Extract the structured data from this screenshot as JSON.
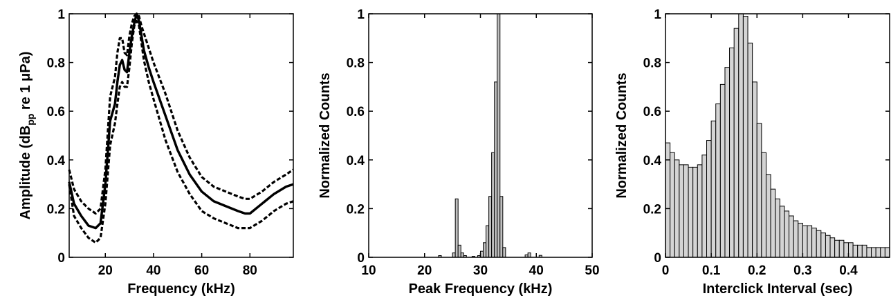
{
  "chart_data": [
    {
      "type": "line",
      "xlabel": "Frequency (kHz)",
      "ylabel": {
        "pre": "Amplitude (dB",
        "sub": "pp",
        "post": " re 1 μPa)"
      },
      "xlim": [
        5,
        98
      ],
      "ylim": [
        0,
        1
      ],
      "xticks": [
        20,
        40,
        60,
        80
      ],
      "yticks": [
        0,
        0.2,
        0.4,
        0.6,
        0.8,
        1
      ],
      "ytick_labels": [
        "0",
        "0.2",
        "0.4",
        "0.6",
        "0.8",
        "1"
      ],
      "grid": false,
      "series": [
        {
          "style": "solid",
          "x": [
            5,
            7,
            10,
            13,
            16,
            18,
            20,
            22,
            24,
            25,
            26,
            27,
            28,
            29,
            30,
            31,
            32,
            33,
            34,
            35,
            36,
            38,
            40,
            45,
            50,
            55,
            60,
            65,
            70,
            75,
            78,
            80,
            85,
            90,
            95,
            98
          ],
          "y": [
            0.31,
            0.22,
            0.17,
            0.13,
            0.12,
            0.14,
            0.3,
            0.56,
            0.63,
            0.72,
            0.79,
            0.81,
            0.77,
            0.76,
            0.84,
            0.91,
            0.96,
            1.0,
            0.97,
            0.91,
            0.85,
            0.78,
            0.72,
            0.58,
            0.44,
            0.34,
            0.27,
            0.23,
            0.21,
            0.19,
            0.18,
            0.18,
            0.22,
            0.26,
            0.29,
            0.3
          ]
        },
        {
          "style": "dashed",
          "x": [
            5,
            7,
            10,
            13,
            16,
            18,
            20,
            22,
            24,
            25,
            26,
            27,
            28,
            29,
            30,
            31,
            32,
            33,
            34,
            35,
            36,
            38,
            40,
            45,
            50,
            55,
            60,
            65,
            70,
            75,
            78,
            80,
            85,
            90,
            95,
            98
          ],
          "y": [
            0.36,
            0.28,
            0.23,
            0.2,
            0.18,
            0.2,
            0.36,
            0.66,
            0.74,
            0.84,
            0.9,
            0.9,
            0.84,
            0.83,
            0.91,
            0.96,
            0.99,
            1.0,
            0.99,
            0.95,
            0.92,
            0.86,
            0.8,
            0.67,
            0.52,
            0.41,
            0.33,
            0.29,
            0.27,
            0.25,
            0.24,
            0.24,
            0.27,
            0.31,
            0.34,
            0.36
          ]
        },
        {
          "style": "dashed",
          "x": [
            5,
            7,
            10,
            13,
            16,
            18,
            20,
            22,
            24,
            25,
            26,
            27,
            28,
            29,
            30,
            31,
            32,
            33,
            34,
            35,
            36,
            38,
            40,
            45,
            50,
            55,
            60,
            65,
            70,
            75,
            78,
            80,
            85,
            90,
            95,
            98
          ],
          "y": [
            0.3,
            0.17,
            0.12,
            0.08,
            0.06,
            0.08,
            0.22,
            0.46,
            0.55,
            0.63,
            0.7,
            0.72,
            0.7,
            0.7,
            0.78,
            0.88,
            0.95,
            0.97,
            0.95,
            0.88,
            0.81,
            0.72,
            0.65,
            0.48,
            0.35,
            0.26,
            0.19,
            0.16,
            0.14,
            0.12,
            0.12,
            0.12,
            0.15,
            0.19,
            0.22,
            0.23
          ]
        }
      ]
    },
    {
      "type": "bar",
      "xlabel": "Peak Frequency (kHz)",
      "ylabel": "Normalized Counts",
      "xlim": [
        10,
        50
      ],
      "ylim": [
        0,
        1
      ],
      "xticks": [
        10,
        20,
        30,
        40,
        50
      ],
      "yticks": [
        0,
        0.2,
        0.4,
        0.6,
        0.8,
        1
      ],
      "ytick_labels": [
        "0",
        "0.2",
        "0.4",
        "0.6",
        "0.8",
        "1"
      ],
      "bin_width": 0.5,
      "bar_color": "#c0c0c0",
      "x": [
        22.5,
        25.0,
        25.5,
        26.0,
        26.5,
        27.0,
        28.5,
        29.5,
        30.0,
        30.5,
        31.0,
        31.5,
        32.0,
        32.5,
        33.0,
        33.5,
        34.0,
        38.0,
        38.5,
        40.5
      ],
      "values": [
        0.007,
        0.018,
        0.24,
        0.05,
        0.018,
        0.007,
        0.004,
        0.007,
        0.025,
        0.06,
        0.13,
        0.25,
        0.43,
        0.72,
        1.0,
        0.25,
        0.04,
        0.01,
        0.018,
        0.008
      ]
    },
    {
      "type": "bar",
      "xlabel": "Interclick Interval (sec)",
      "ylabel": "Normalized Counts",
      "xlim": [
        0,
        0.49
      ],
      "ylim": [
        0,
        1
      ],
      "xticks": [
        0,
        0.1,
        0.2,
        0.3,
        0.4
      ],
      "xtick_labels": [
        "0",
        "0.1",
        "0.2",
        "0.3",
        "0.4"
      ],
      "yticks": [
        0,
        0.2,
        0.4,
        0.6,
        0.8,
        1
      ],
      "ytick_labels": [
        "0",
        "0.2",
        "0.4",
        "0.6",
        "0.8",
        "1"
      ],
      "bin_width": 0.01,
      "bar_color": "#d4d4d4",
      "values": [
        0.47,
        0.43,
        0.4,
        0.38,
        0.38,
        0.37,
        0.37,
        0.38,
        0.42,
        0.48,
        0.56,
        0.63,
        0.71,
        0.78,
        0.86,
        0.94,
        1.0,
        0.99,
        0.88,
        0.72,
        0.55,
        0.43,
        0.34,
        0.28,
        0.24,
        0.21,
        0.19,
        0.17,
        0.15,
        0.14,
        0.13,
        0.13,
        0.12,
        0.11,
        0.1,
        0.09,
        0.08,
        0.07,
        0.07,
        0.06,
        0.06,
        0.05,
        0.05,
        0.05,
        0.04,
        0.04,
        0.04,
        0.04,
        0.04
      ]
    }
  ]
}
